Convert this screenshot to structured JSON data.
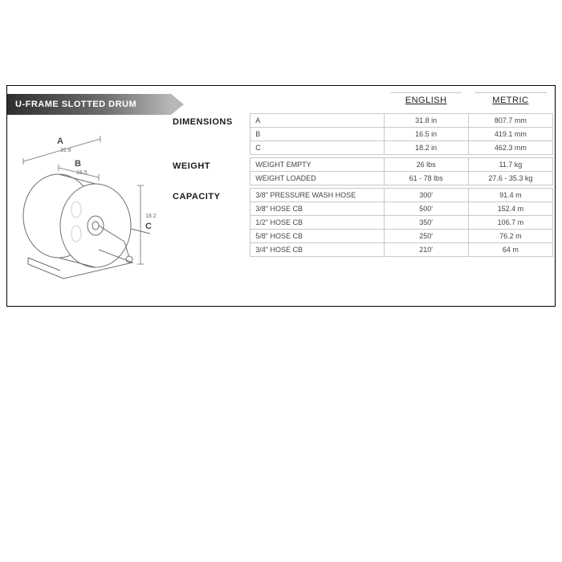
{
  "header": {
    "title": "U-FRAME SLOTTED DRUM"
  },
  "columns": {
    "english": "ENGLISH",
    "metric": "METRIC"
  },
  "sections": [
    {
      "name": "DIMENSIONS",
      "rows": [
        {
          "label": "A",
          "english": "31.8 in",
          "metric": "807.7 mm"
        },
        {
          "label": "B",
          "english": "16.5 in",
          "metric": "419.1 mm"
        },
        {
          "label": "C",
          "english": "18.2 in",
          "metric": "462.3 mm"
        }
      ]
    },
    {
      "name": "WEIGHT",
      "rows": [
        {
          "label": "WEIGHT EMPTY",
          "english": "26 lbs",
          "metric": "11.7 kg"
        },
        {
          "label": "WEIGHT LOADED",
          "english": "61 - 78 lbs",
          "metric": "27.6 - 35.3 kg"
        }
      ]
    },
    {
      "name": "CAPACITY",
      "rows": [
        {
          "label": "3/8\" PRESSURE WASH HOSE",
          "english": "300'",
          "metric": "91.4 m"
        },
        {
          "label": "3/8\" HOSE CB",
          "english": "500'",
          "metric": "152.4 m"
        },
        {
          "label": "1/2\" HOSE CB",
          "english": "350'",
          "metric": "106.7 m"
        },
        {
          "label": "5/8\" HOSE CB",
          "english": "250'",
          "metric": "76.2 m"
        },
        {
          "label": "3/4\" HOSE CB",
          "english": "210'",
          "metric": "64 m"
        }
      ]
    }
  ],
  "diagram": {
    "labels": {
      "A": "A",
      "A_val": "31.8",
      "B": "B",
      "B_val": "16.5",
      "C": "C",
      "C_val": "18.2"
    },
    "colors": {
      "line": "#6e6e6e",
      "light": "#cfcfcf",
      "text": "#5a5a5a"
    }
  },
  "style": {
    "ribbon_gradient_start": "#2e2e2e",
    "ribbon_gradient_mid": "#6f6f6f",
    "ribbon_gradient_end": "#b7b7b7",
    "grid_color": "#c8c8c8",
    "text_color": "#3a3a3a",
    "card_border": "#000000",
    "background": "#ffffff",
    "header_fontsize": 11,
    "category_fontsize": 11,
    "cell_fontsize": 9
  }
}
